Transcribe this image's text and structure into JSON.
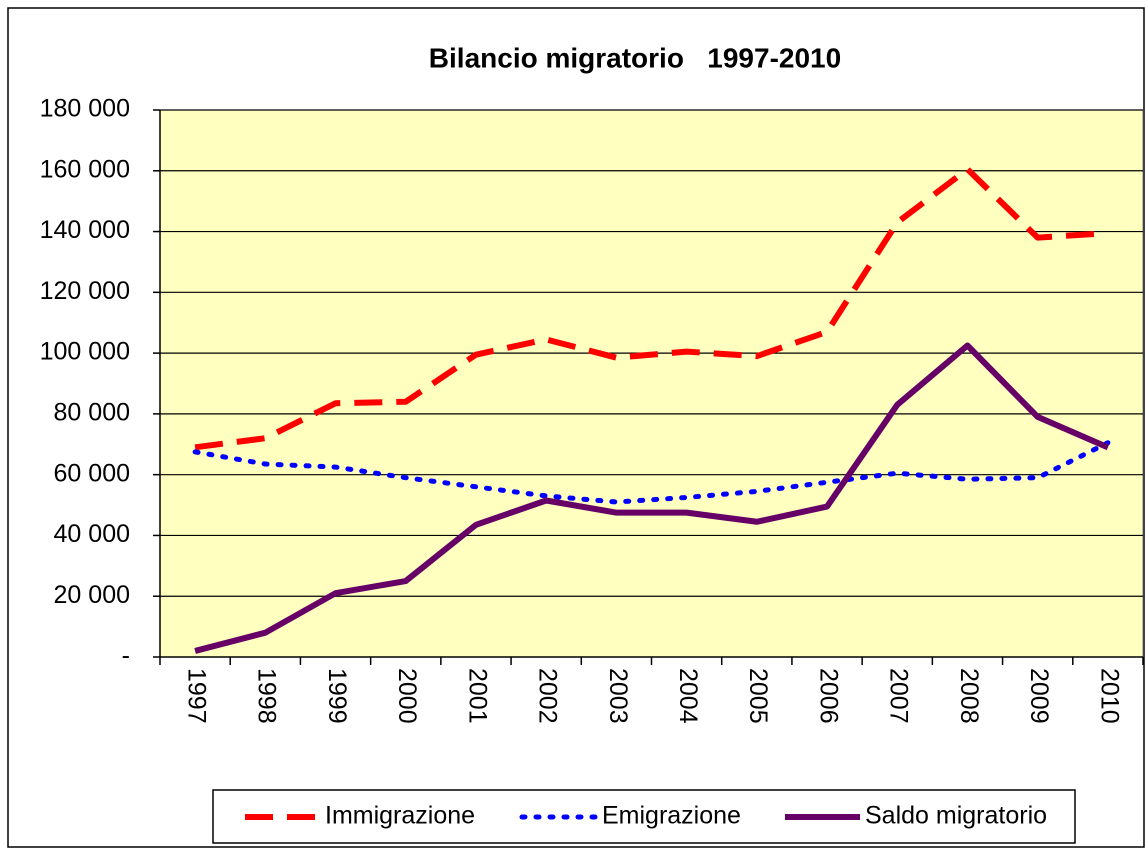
{
  "chart_data": {
    "type": "line",
    "title": "Bilancio migratorio   1997-2010",
    "categories": [
      "1997",
      "1998",
      "1999",
      "2000",
      "2001",
      "2002",
      "2003",
      "2004",
      "2005",
      "2006",
      "2007",
      "2008",
      "2009",
      "2010"
    ],
    "series": [
      {
        "name": "Immigrazione",
        "color": "#ff0000",
        "style": "dashed",
        "values": [
          69000,
          72000,
          83500,
          84000,
          99500,
          104500,
          98500,
          100500,
          99000,
          107000,
          143000,
          160500,
          138000,
          139500
        ]
      },
      {
        "name": "Emigrazione",
        "color": "#0000ff",
        "style": "dotted",
        "values": [
          67500,
          63500,
          62500,
          59000,
          56000,
          53000,
          51000,
          52500,
          54500,
          57500,
          60500,
          58500,
          59000,
          70500
        ]
      },
      {
        "name": "Saldo migratorio",
        "color": "#660066",
        "style": "solid",
        "values": [
          2000,
          8000,
          21000,
          25000,
          43500,
          51500,
          47500,
          47500,
          44500,
          49500,
          83000,
          102500,
          79000,
          69000
        ]
      }
    ],
    "ylim": [
      0,
      180000
    ],
    "yticks": [
      {
        "value": 0,
        "label": "-"
      },
      {
        "value": 20000,
        "label": "20 000"
      },
      {
        "value": 40000,
        "label": "40 000"
      },
      {
        "value": 60000,
        "label": "60 000"
      },
      {
        "value": 80000,
        "label": "80 000"
      },
      {
        "value": 100000,
        "label": "100 000"
      },
      {
        "value": 120000,
        "label": "120 000"
      },
      {
        "value": 140000,
        "label": "140 000"
      },
      {
        "value": 160000,
        "label": "160 000"
      },
      {
        "value": 180000,
        "label": "180 000"
      }
    ],
    "grid": true,
    "legend": "bottom",
    "plot_background": "#ffffc0"
  }
}
